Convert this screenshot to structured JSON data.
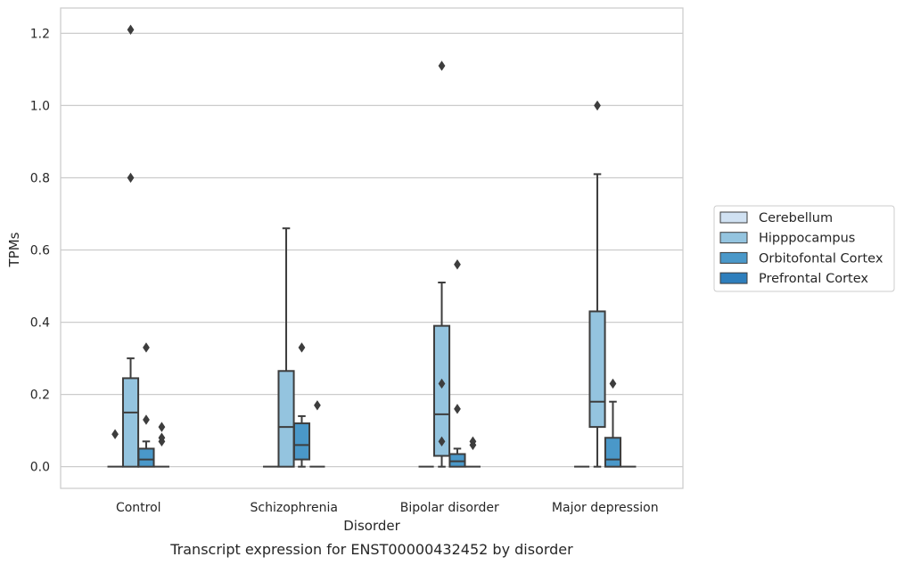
{
  "chart_data": {
    "type": "boxplot",
    "title": "",
    "caption": "Transcript expression for ENST00000432452 by disorder",
    "xlabel": "Disorder",
    "ylabel": "TPMs",
    "ylim": [
      -0.06,
      1.27
    ],
    "yticks": [
      0.0,
      0.2,
      0.4,
      0.6,
      0.8,
      1.0,
      1.2
    ],
    "ytick_labels": [
      "0.0",
      "0.2",
      "0.4",
      "0.6",
      "0.8",
      "1.0",
      "1.2"
    ],
    "grid": "horizontal",
    "legend_position": "right",
    "categories": [
      "Control",
      "Schizophrenia",
      "Bipolar disorder",
      "Major depression"
    ],
    "series": [
      {
        "name": "Cerebellum",
        "color": "#d0e1f2",
        "boxes": [
          {
            "q1": 0,
            "median": 0,
            "q3": 0,
            "whisker_low": 0,
            "whisker_high": 0,
            "outliers": [
              0.09
            ]
          },
          {
            "q1": 0,
            "median": 0,
            "q3": 0,
            "whisker_low": 0,
            "whisker_high": 0,
            "outliers": []
          },
          {
            "q1": 0,
            "median": 0,
            "q3": 0,
            "whisker_low": 0,
            "whisker_high": 0,
            "outliers": []
          },
          {
            "q1": 0,
            "median": 0,
            "q3": 0,
            "whisker_low": 0,
            "whisker_high": 0,
            "outliers": []
          }
        ]
      },
      {
        "name": "Hipppocampus",
        "color": "#94c4df",
        "boxes": [
          {
            "q1": 0,
            "median": 0.15,
            "q3": 0.245,
            "whisker_low": 0,
            "whisker_high": 0.3,
            "outliers": [
              0.8,
              1.21
            ]
          },
          {
            "q1": 0,
            "median": 0.11,
            "q3": 0.265,
            "whisker_low": 0,
            "whisker_high": 0.66,
            "outliers": []
          },
          {
            "q1": 0.03,
            "median": 0.145,
            "q3": 0.39,
            "whisker_low": 0,
            "whisker_high": 0.51,
            "outliers": [
              0.07,
              0.23,
              1.11
            ]
          },
          {
            "q1": 0.11,
            "median": 0.18,
            "q3": 0.43,
            "whisker_low": 0,
            "whisker_high": 0.81,
            "outliers": [
              1.0
            ]
          }
        ]
      },
      {
        "name": "Orbitofontal Cortex",
        "color": "#4a98c9",
        "boxes": [
          {
            "q1": 0,
            "median": 0.02,
            "q3": 0.05,
            "whisker_low": 0,
            "whisker_high": 0.07,
            "outliers": [
              0.13,
              0.33
            ]
          },
          {
            "q1": 0.02,
            "median": 0.06,
            "q3": 0.12,
            "whisker_low": 0,
            "whisker_high": 0.14,
            "outliers": [
              0.33
            ]
          },
          {
            "q1": 0,
            "median": 0.015,
            "q3": 0.035,
            "whisker_low": 0,
            "whisker_high": 0.05,
            "outliers": [
              0.16,
              0.56
            ]
          },
          {
            "q1": 0,
            "median": 0.02,
            "q3": 0.08,
            "whisker_low": 0,
            "whisker_high": 0.18,
            "outliers": [
              0.23
            ]
          }
        ]
      },
      {
        "name": "Prefrontal Cortex",
        "color": "#2e7ebc",
        "boxes": [
          {
            "q1": 0,
            "median": 0,
            "q3": 0,
            "whisker_low": 0,
            "whisker_high": 0,
            "outliers": [
              0.07,
              0.08,
              0.11
            ]
          },
          {
            "q1": 0,
            "median": 0,
            "q3": 0,
            "whisker_low": 0,
            "whisker_high": 0,
            "outliers": [
              0.17
            ]
          },
          {
            "q1": 0,
            "median": 0,
            "q3": 0,
            "whisker_low": 0,
            "whisker_high": 0,
            "outliers": [
              0.06,
              0.07
            ]
          },
          {
            "q1": 0,
            "median": 0,
            "q3": 0,
            "whisker_low": 0,
            "whisker_high": 0,
            "outliers": []
          }
        ]
      }
    ]
  }
}
